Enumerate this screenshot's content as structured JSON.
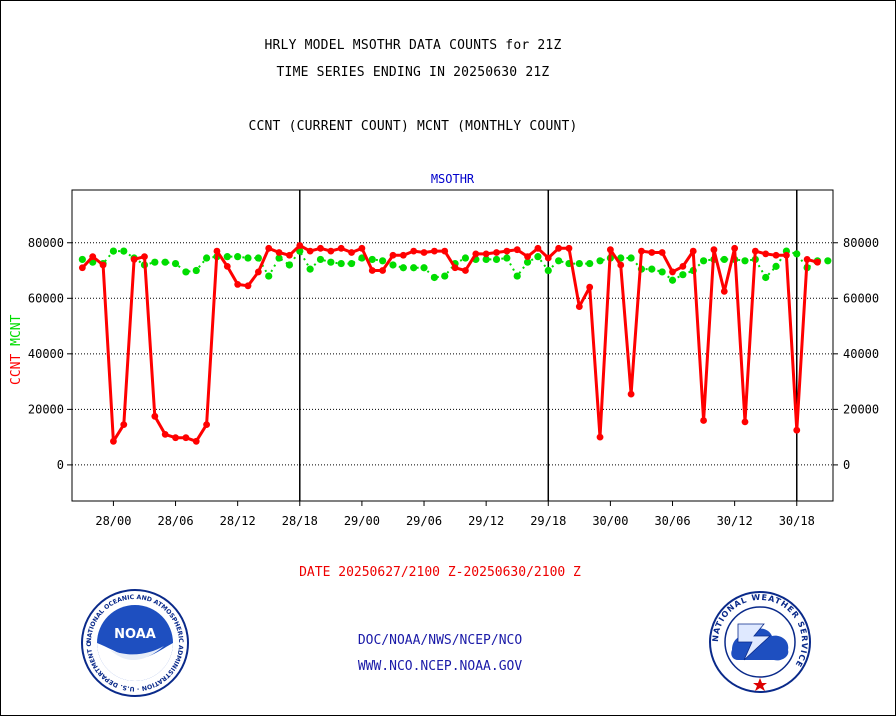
{
  "title_lines": [
    "HRLY MODEL MSOTHR DATA COUNTS for 21Z",
    "TIME SERIES ENDING IN 20250630 21Z",
    "CCNT (CURRENT COUNT) MCNT (MONTHLY COUNT)"
  ],
  "footer": {
    "date_range": "DATE 20250627/2100 Z-20250630/2100 Z",
    "org_path": "DOC/NOAA/NWS/NCEP/NCO",
    "website": "WWW.NCO.NCEP.NOAA.GOV"
  },
  "logos": {
    "left": {
      "icon": "noaa-logo-icon",
      "text": "NOAA",
      "ring_text": "NATIONAL OCEANIC AND ATMOSPHERIC ADMINISTRATION · U.S. DEPARTMENT OF COMMERCE"
    },
    "right": {
      "icon": "nws-logo-icon",
      "ring_text": "NATIONAL WEATHER SERVICE"
    }
  },
  "colors": {
    "ccnt": "#ff0000",
    "mcnt": "#00dd00",
    "inner_title": "#0000cc",
    "footer_blue": "#1a1aa8",
    "date_red": "#ee0000"
  },
  "chart_data": {
    "type": "line",
    "title": "MSOTHR",
    "ylabel_parts": [
      {
        "text": "CCNT",
        "color": "#ff0000"
      },
      {
        "text": "MCNT",
        "color": "#00dd00"
      }
    ],
    "xlabel": "",
    "ylim": [
      -13000,
      99000
    ],
    "xlim": [
      -1,
      72.5
    ],
    "y_ticks": [
      0,
      20000,
      40000,
      60000,
      80000
    ],
    "y_tick_labels": [
      "0",
      "20000",
      "40000",
      "60000",
      "80000"
    ],
    "x_ticks": [
      3,
      9,
      15,
      21,
      27,
      33,
      39,
      45,
      51,
      57,
      63,
      69
    ],
    "x_tick_labels": [
      "28/00",
      "28/06",
      "28/12",
      "28/18",
      "29/00",
      "29/06",
      "29/12",
      "29/18",
      "30/00",
      "30/06",
      "30/12",
      "30/18"
    ],
    "day_dividers": [
      21,
      45,
      69
    ],
    "grid": "horizontal-dotted",
    "x_note": "hours from 20250627/2100 Z",
    "series": [
      {
        "name": "CCNT",
        "color": "#ff0000",
        "x": [
          0,
          1,
          2,
          3,
          4,
          5,
          6,
          7,
          8,
          9,
          10,
          11,
          12,
          13,
          14,
          15,
          16,
          17,
          18,
          19,
          20,
          21,
          22,
          23,
          24,
          25,
          26,
          27,
          28,
          29,
          30,
          31,
          32,
          33,
          34,
          35,
          36,
          37,
          38,
          39,
          40,
          41,
          42,
          43,
          44,
          45,
          46,
          47,
          48,
          49,
          50,
          51,
          52,
          53,
          54,
          55,
          56,
          57,
          58,
          59,
          60,
          61,
          62,
          63,
          64,
          65,
          66,
          67,
          68,
          69,
          70,
          71
        ],
        "values": [
          71000,
          75000,
          72000,
          8500,
          14500,
          74000,
          75000,
          17500,
          11000,
          9800,
          9800,
          8500,
          14500,
          77000,
          71500,
          65000,
          64500,
          69500,
          78000,
          76500,
          75500,
          79000,
          77000,
          78000,
          77000,
          78000,
          76500,
          78000,
          70000,
          70000,
          75500,
          75500,
          77000,
          76500,
          77000,
          77000,
          71000,
          70000,
          76000,
          76000,
          76500,
          77000,
          77500,
          75000,
          78000,
          74500,
          78000,
          78000,
          57000,
          64000,
          10000,
          77500,
          72000,
          25500,
          77000,
          76500,
          76500,
          69500,
          71500,
          77000,
          16000,
          77500,
          62500,
          78000,
          15500,
          77000,
          76000,
          75500,
          75500,
          12500,
          74000,
          73000
        ]
      },
      {
        "name": "MCNT",
        "color": "#00dd00",
        "x": [
          0,
          1,
          2,
          3,
          4,
          5,
          6,
          7,
          8,
          9,
          10,
          11,
          12,
          13,
          14,
          15,
          16,
          17,
          18,
          19,
          20,
          21,
          22,
          23,
          24,
          25,
          26,
          27,
          28,
          29,
          30,
          31,
          32,
          33,
          34,
          35,
          36,
          37,
          38,
          39,
          40,
          41,
          42,
          43,
          44,
          45,
          46,
          47,
          48,
          49,
          50,
          51,
          52,
          53,
          54,
          55,
          56,
          57,
          58,
          59,
          60,
          61,
          62,
          63,
          64,
          65,
          66,
          67,
          68,
          69,
          70,
          71,
          72
        ],
        "values": [
          74000,
          73000,
          72500,
          77000,
          77000,
          74500,
          72000,
          73000,
          73000,
          72500,
          69500,
          70000,
          74500,
          75000,
          75000,
          75000,
          74500,
          74500,
          68000,
          74500,
          72000,
          77000,
          70500,
          74000,
          73000,
          72500,
          72500,
          74500,
          74000,
          73500,
          72000,
          71000,
          71000,
          71000,
          67500,
          68000,
          72500,
          74500,
          74000,
          74000,
          74000,
          74500,
          68000,
          73000,
          75000,
          70000,
          73500,
          72500,
          72500,
          72500,
          73500,
          74500,
          74500,
          74500,
          70500,
          70500,
          69500,
          66500,
          68500,
          70000,
          73500,
          74000,
          74000,
          74000,
          73500,
          74000,
          67500,
          71500,
          77000,
          76000,
          71000,
          73500,
          73500
        ]
      }
    ]
  }
}
